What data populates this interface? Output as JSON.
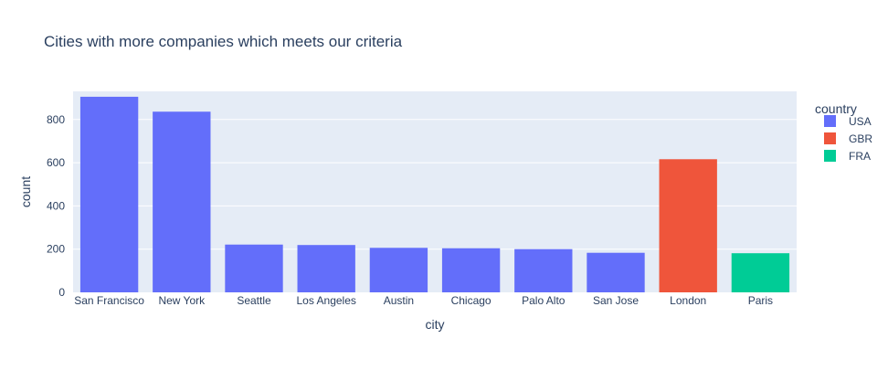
{
  "chart_data": {
    "type": "bar",
    "title": "Cities with more companies which meets our criteria",
    "xlabel": "city",
    "ylabel": "count",
    "ylim": [
      0,
      930
    ],
    "yticks": [
      0,
      200,
      400,
      600,
      800
    ],
    "grid": true,
    "legend_title": "country",
    "legend_position": "right",
    "categories": [
      "San Francisco",
      "New York",
      "Seattle",
      "Los Angeles",
      "Austin",
      "Chicago",
      "Palo Alto",
      "San Jose",
      "London",
      "Paris"
    ],
    "values": [
      905,
      836,
      221,
      219,
      206,
      204,
      200,
      183,
      616,
      181
    ],
    "country": [
      "USA",
      "USA",
      "USA",
      "USA",
      "USA",
      "USA",
      "USA",
      "USA",
      "GBR",
      "FRA"
    ],
    "series": [
      {
        "name": "USA",
        "color": "#636efa"
      },
      {
        "name": "GBR",
        "color": "#ef553b"
      },
      {
        "name": "FRA",
        "color": "#00cc96"
      }
    ],
    "plot_bg": "#e5ecf6",
    "text_color": "#2a3f5f"
  }
}
